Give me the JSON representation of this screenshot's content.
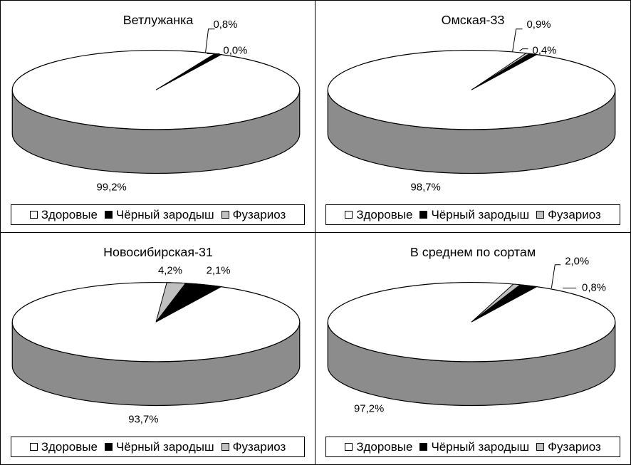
{
  "chart_data": [
    {
      "type": "pie",
      "title": "Ветлужанка",
      "categories": [
        "Здоровые",
        "Чёрный зародыш",
        "Фузариоз"
      ],
      "values": [
        99.2,
        0.8,
        0.0
      ],
      "labels": [
        "99,2%",
        "0,8%",
        "0,0%"
      ],
      "legend_position": "bottom"
    },
    {
      "type": "pie",
      "title": "Омская-33",
      "categories": [
        "Здоровые",
        "Чёрный зародыш",
        "Фузариоз"
      ],
      "values": [
        98.7,
        0.9,
        0.4
      ],
      "labels": [
        "98,7%",
        "0,9%",
        "0,4%"
      ],
      "legend_position": "bottom"
    },
    {
      "type": "pie",
      "title": "Новосибирская-31",
      "categories": [
        "Здоровые",
        "Чёрный зародыш",
        "Фузариоз"
      ],
      "values": [
        93.7,
        4.2,
        2.1
      ],
      "labels": [
        "93,7%",
        "4,2%",
        "2,1%"
      ],
      "legend_position": "bottom"
    },
    {
      "type": "pie",
      "title": "В среднем по сортам",
      "categories": [
        "Здоровые",
        "Чёрный зародыш",
        "Фузариоз"
      ],
      "values": [
        97.2,
        2.0,
        0.8
      ],
      "labels": [
        "97,2%",
        "2,0%",
        "0,8%"
      ],
      "legend_position": "bottom"
    }
  ],
  "legend": {
    "items": [
      {
        "label": "Здоровые",
        "color": "#ffffff"
      },
      {
        "label": "Чёрный зародыш",
        "color": "#000000"
      },
      {
        "label": "Фузариоз",
        "color": "#c0c0c0"
      }
    ]
  },
  "colors": {
    "healthy_top": "#ffffff",
    "healthy_side": "#8c8c8c",
    "black_germ": "#000000",
    "fusarium": "#c0c0c0"
  }
}
